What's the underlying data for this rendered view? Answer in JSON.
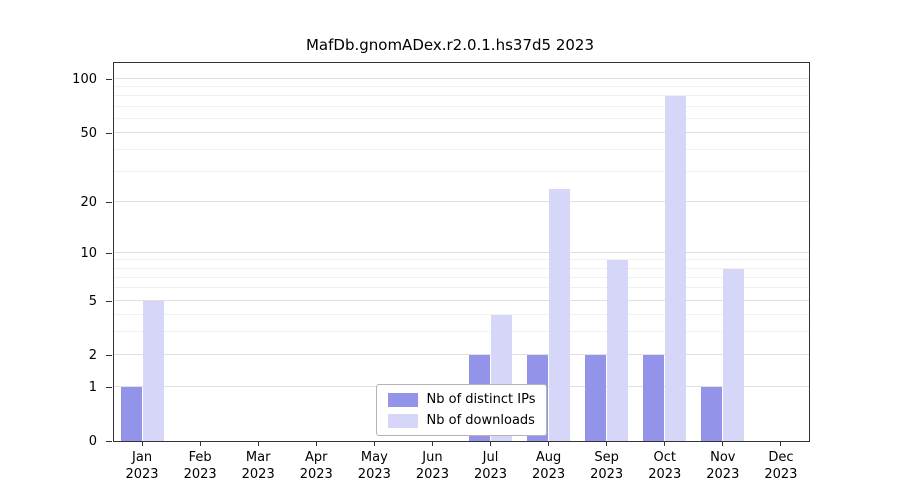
{
  "chart_data": {
    "type": "bar",
    "title": "MafDb.gnomADex.r2.0.1.hs37d5 2023",
    "y_scale": "log1p",
    "ylim": [
      0,
      123
    ],
    "yticks": [
      0,
      1,
      2,
      5,
      10,
      20,
      50,
      100
    ],
    "minor_gridlines": [
      3,
      4,
      6,
      7,
      8,
      9,
      30,
      40,
      60,
      70,
      80,
      90
    ],
    "categories": [
      "Jan",
      "Feb",
      "Mar",
      "Apr",
      "May",
      "Jun",
      "Jul",
      "Aug",
      "Sep",
      "Oct",
      "Nov",
      "Dec"
    ],
    "x_year": "2023",
    "series": [
      {
        "name": "Nb of distinct IPs",
        "color": "#9393ea",
        "values": [
          1,
          0,
          0,
          0,
          0,
          0,
          2,
          2,
          2,
          2,
          1,
          0
        ]
      },
      {
        "name": "Nb of downloads",
        "color": "#d6d6f8",
        "values": [
          5,
          0,
          0,
          0,
          0,
          0,
          4,
          24,
          9,
          80,
          8,
          0
        ]
      }
    ],
    "legend_position": "bottom-center",
    "grid": true
  }
}
